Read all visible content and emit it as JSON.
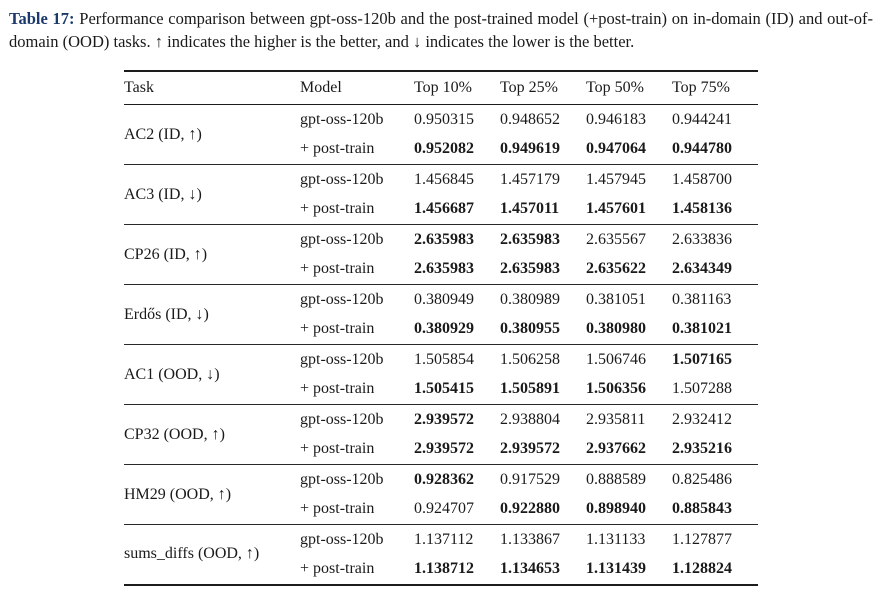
{
  "caption": {
    "label": "Table 17:",
    "text": " Performance comparison between gpt-oss-120b and the post-trained model (+post-train) on in-domain (ID) and out-of-domain (OOD) tasks. ↑ indicates the higher is the better, and ↓ indicates the lower is the better."
  },
  "colors": {
    "caption_label": "#1b3a6b",
    "text": "#1a1a1a",
    "rule": "#1c1c1c"
  },
  "table": {
    "headers": [
      "Task",
      "Model",
      "Top 10%",
      "Top 25%",
      "Top 50%",
      "Top 75%"
    ],
    "groups": [
      {
        "task": "AC2 (ID, ↑)",
        "rows": [
          {
            "model": "gpt-oss-120b",
            "values": [
              "0.950315",
              "0.948652",
              "0.946183",
              "0.944241"
            ],
            "bold": [
              false,
              false,
              false,
              false
            ]
          },
          {
            "model": "+ post-train",
            "values": [
              "0.952082",
              "0.949619",
              "0.947064",
              "0.944780"
            ],
            "bold": [
              true,
              true,
              true,
              true
            ]
          }
        ]
      },
      {
        "task": "AC3 (ID, ↓)",
        "rows": [
          {
            "model": "gpt-oss-120b",
            "values": [
              "1.456845",
              "1.457179",
              "1.457945",
              "1.458700"
            ],
            "bold": [
              false,
              false,
              false,
              false
            ]
          },
          {
            "model": "+ post-train",
            "values": [
              "1.456687",
              "1.457011",
              "1.457601",
              "1.458136"
            ],
            "bold": [
              true,
              true,
              true,
              true
            ]
          }
        ]
      },
      {
        "task": "CP26 (ID, ↑)",
        "rows": [
          {
            "model": "gpt-oss-120b",
            "values": [
              "2.635983",
              "2.635983",
              "2.635567",
              "2.633836"
            ],
            "bold": [
              true,
              true,
              false,
              false
            ]
          },
          {
            "model": "+ post-train",
            "values": [
              "2.635983",
              "2.635983",
              "2.635622",
              "2.634349"
            ],
            "bold": [
              true,
              true,
              true,
              true
            ]
          }
        ]
      },
      {
        "task": "Erdős (ID, ↓)",
        "rows": [
          {
            "model": "gpt-oss-120b",
            "values": [
              "0.380949",
              "0.380989",
              "0.381051",
              "0.381163"
            ],
            "bold": [
              false,
              false,
              false,
              false
            ]
          },
          {
            "model": "+ post-train",
            "values": [
              "0.380929",
              "0.380955",
              "0.380980",
              "0.381021"
            ],
            "bold": [
              true,
              true,
              true,
              true
            ]
          }
        ]
      },
      {
        "task": "AC1 (OOD, ↓)",
        "rows": [
          {
            "model": "gpt-oss-120b",
            "values": [
              "1.505854",
              "1.506258",
              "1.506746",
              "1.507165"
            ],
            "bold": [
              false,
              false,
              false,
              true
            ]
          },
          {
            "model": "+ post-train",
            "values": [
              "1.505415",
              "1.505891",
              "1.506356",
              "1.507288"
            ],
            "bold": [
              true,
              true,
              true,
              false
            ]
          }
        ]
      },
      {
        "task": "CP32 (OOD, ↑)",
        "rows": [
          {
            "model": "gpt-oss-120b",
            "values": [
              "2.939572",
              "2.938804",
              "2.935811",
              "2.932412"
            ],
            "bold": [
              true,
              false,
              false,
              false
            ]
          },
          {
            "model": "+ post-train",
            "values": [
              "2.939572",
              "2.939572",
              "2.937662",
              "2.935216"
            ],
            "bold": [
              true,
              true,
              true,
              true
            ]
          }
        ]
      },
      {
        "task": "HM29 (OOD, ↑)",
        "rows": [
          {
            "model": "gpt-oss-120b",
            "values": [
              "0.928362",
              "0.917529",
              "0.888589",
              "0.825486"
            ],
            "bold": [
              true,
              false,
              false,
              false
            ]
          },
          {
            "model": "+ post-train",
            "values": [
              "0.924707",
              "0.922880",
              "0.898940",
              "0.885843"
            ],
            "bold": [
              false,
              true,
              true,
              true
            ]
          }
        ]
      },
      {
        "task": "sums_diffs (OOD, ↑)",
        "rows": [
          {
            "model": "gpt-oss-120b",
            "values": [
              "1.137112",
              "1.133867",
              "1.131133",
              "1.127877"
            ],
            "bold": [
              false,
              false,
              false,
              false
            ]
          },
          {
            "model": "+ post-train",
            "values": [
              "1.138712",
              "1.134653",
              "1.131439",
              "1.128824"
            ],
            "bold": [
              true,
              true,
              true,
              true
            ]
          }
        ]
      }
    ]
  }
}
